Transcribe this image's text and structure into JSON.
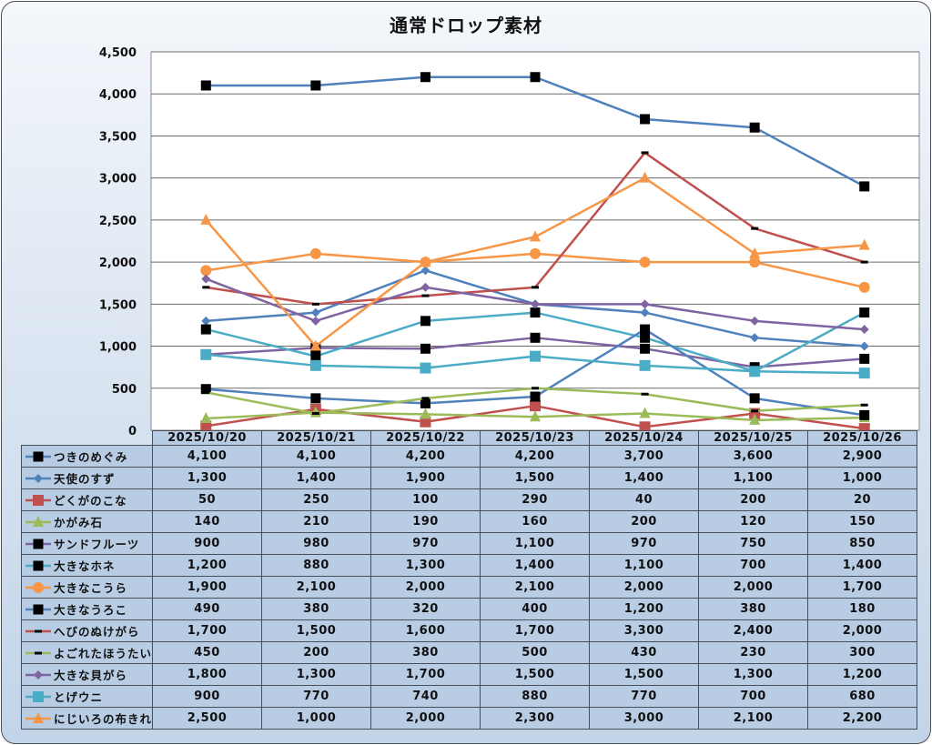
{
  "chart_data": {
    "type": "line",
    "title": "通常ドロップ素材",
    "xlabel": "",
    "ylabel": "",
    "ylim": [
      0,
      4500
    ],
    "yticks": [
      0,
      500,
      1000,
      1500,
      2000,
      2500,
      3000,
      3500,
      4000,
      4500
    ],
    "ytick_labels": [
      "0",
      "500",
      "1,000",
      "1,500",
      "2,000",
      "2,500",
      "3,000",
      "3,500",
      "4,000",
      "4,500"
    ],
    "grid": true,
    "legend": "data-table-left",
    "categories": [
      "2025/10/20",
      "2025/10/21",
      "2025/10/22",
      "2025/10/23",
      "2025/10/24",
      "2025/10/25",
      "2025/10/26"
    ],
    "series": [
      {
        "name": "つきのめぐみ",
        "color": "#4f81bd",
        "marker": "square-black",
        "values": [
          4100,
          4100,
          4200,
          4200,
          3700,
          3600,
          2900
        ],
        "labels": [
          "4,100",
          "4,100",
          "4,200",
          "4,200",
          "3,700",
          "3,600",
          "2,900"
        ]
      },
      {
        "name": "天使のすず",
        "color": "#4f81bd",
        "marker": "diamond",
        "values": [
          1300,
          1400,
          1900,
          1500,
          1400,
          1100,
          1000
        ],
        "labels": [
          "1,300",
          "1,400",
          "1,900",
          "1,500",
          "1,400",
          "1,100",
          "1,000"
        ]
      },
      {
        "name": "どくがのこな",
        "color": "#c0504d",
        "marker": "square",
        "values": [
          50,
          250,
          100,
          290,
          40,
          200,
          20
        ],
        "labels": [
          "50",
          "250",
          "100",
          "290",
          "40",
          "200",
          "20"
        ]
      },
      {
        "name": "かがみ石",
        "color": "#9bbb59",
        "marker": "triangle",
        "values": [
          140,
          210,
          190,
          160,
          200,
          120,
          150
        ],
        "labels": [
          "140",
          "210",
          "190",
          "160",
          "200",
          "120",
          "150"
        ]
      },
      {
        "name": "サンドフルーツ",
        "color": "#8064a2",
        "marker": "square-black",
        "values": [
          900,
          980,
          970,
          1100,
          970,
          750,
          850
        ],
        "labels": [
          "900",
          "980",
          "970",
          "1,100",
          "970",
          "750",
          "850"
        ]
      },
      {
        "name": "大きなホネ",
        "color": "#4bacc6",
        "marker": "square-black",
        "values": [
          1200,
          880,
          1300,
          1400,
          1100,
          700,
          1400
        ],
        "labels": [
          "1,200",
          "880",
          "1,300",
          "1,400",
          "1,100",
          "700",
          "1,400"
        ]
      },
      {
        "name": "大きなこうら",
        "color": "#f79646",
        "marker": "circle",
        "values": [
          1900,
          2100,
          2000,
          2100,
          2000,
          2000,
          1700
        ],
        "labels": [
          "1,900",
          "2,100",
          "2,000",
          "2,100",
          "2,000",
          "2,000",
          "1,700"
        ]
      },
      {
        "name": "大きなうろこ",
        "color": "#4f81bd",
        "marker": "square-black",
        "values": [
          490,
          380,
          320,
          400,
          1200,
          380,
          180
        ],
        "labels": [
          "490",
          "380",
          "320",
          "400",
          "1,200",
          "380",
          "180"
        ]
      },
      {
        "name": "へびのぬけがら",
        "color": "#c0504d",
        "marker": "dash-black",
        "values": [
          1700,
          1500,
          1600,
          1700,
          3300,
          2400,
          2000
        ],
        "labels": [
          "1,700",
          "1,500",
          "1,600",
          "1,700",
          "3,300",
          "2,400",
          "2,000"
        ]
      },
      {
        "name": "よごれたほうたい",
        "color": "#9bbb59",
        "marker": "dash-black",
        "values": [
          450,
          200,
          380,
          500,
          430,
          230,
          300
        ],
        "labels": [
          "450",
          "200",
          "380",
          "500",
          "430",
          "230",
          "300"
        ]
      },
      {
        "name": "大きな貝がら",
        "color": "#8064a2",
        "marker": "diamond",
        "values": [
          1800,
          1300,
          1700,
          1500,
          1500,
          1300,
          1200
        ],
        "labels": [
          "1,800",
          "1,300",
          "1,700",
          "1,500",
          "1,500",
          "1,300",
          "1,200"
        ]
      },
      {
        "name": "とげウニ",
        "color": "#4bacc6",
        "marker": "square",
        "values": [
          900,
          770,
          740,
          880,
          770,
          700,
          680
        ],
        "labels": [
          "900",
          "770",
          "740",
          "880",
          "770",
          "700",
          "680"
        ]
      },
      {
        "name": "にじいろの布きれ",
        "color": "#f79646",
        "marker": "triangle",
        "values": [
          2500,
          1000,
          2000,
          2300,
          3000,
          2100,
          2200
        ],
        "labels": [
          "2,500",
          "1,000",
          "2,000",
          "2,300",
          "3,000",
          "2,100",
          "2,200"
        ]
      }
    ]
  }
}
